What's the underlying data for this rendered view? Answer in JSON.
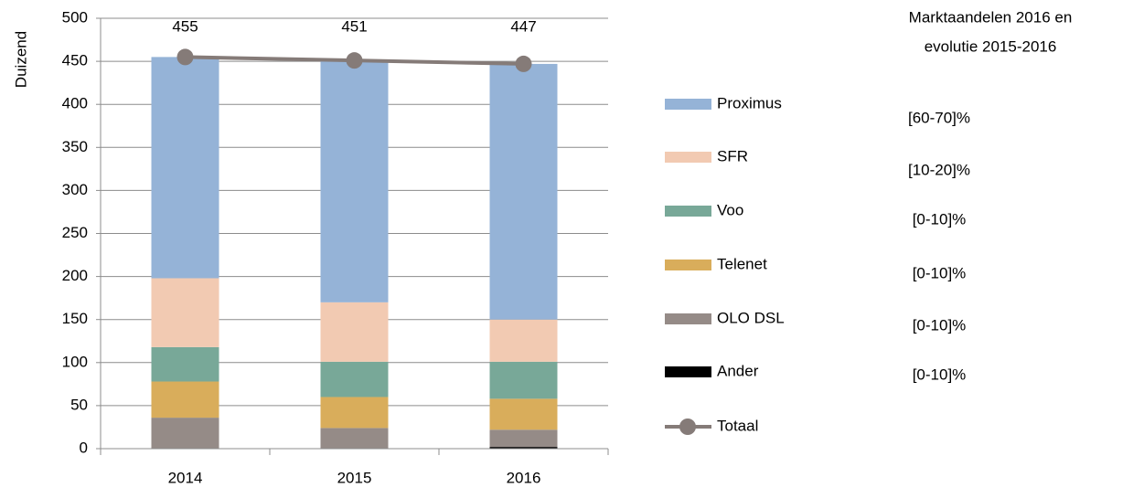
{
  "chart_data": {
    "type": "bar",
    "annotation": [
      "Marktaandelen  2016 en",
      "evolutie 2015-2016"
    ],
    "ylabel": "Duizend",
    "categories": [
      "2014",
      "2015",
      "2016"
    ],
    "ylim": [
      0,
      500
    ],
    "yticks": [
      0,
      50,
      100,
      150,
      200,
      250,
      300,
      350,
      400,
      450,
      500
    ],
    "grid": true,
    "series": [
      {
        "name": "Proximus",
        "color": "#95b3d7",
        "values": [
          257,
          281,
          297
        ],
        "share": "[60-70]%"
      },
      {
        "name": "SFR",
        "color": "#f2cab2",
        "values": [
          80,
          69,
          49
        ],
        "share": "[10-20]%"
      },
      {
        "name": "Voo",
        "color": "#78a898",
        "values": [
          40,
          41,
          43
        ],
        "share": "[0-10]%"
      },
      {
        "name": "Telenet",
        "color": "#d9ad5b",
        "values": [
          42,
          36,
          36
        ],
        "share": "[0-10]%"
      },
      {
        "name": "OLO DSL",
        "color": "#958b87",
        "values": [
          36,
          24,
          20
        ],
        "share": "[0-10]%"
      },
      {
        "name": "Ander",
        "color": "#000000",
        "values": [
          0,
          0,
          2
        ],
        "share": "[0-10]%"
      },
      {
        "name": "Totaal",
        "color": "#857b78",
        "type": "line",
        "values": [
          455,
          451,
          447
        ]
      }
    ]
  }
}
